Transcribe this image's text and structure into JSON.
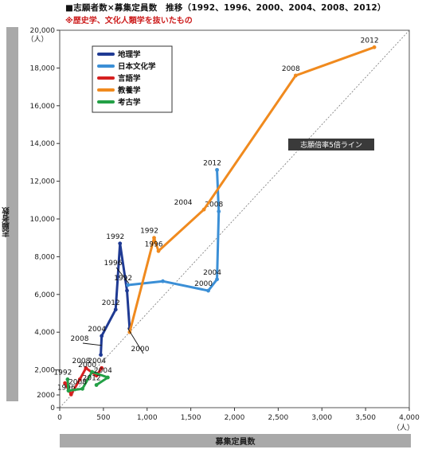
{
  "chart_data": {
    "type": "line",
    "title": "■志願者数×募集定員数　推移（1992、1996、2000、2004、2008、2012）",
    "subtitle": "※歴史学、文化人類学を抜いたもの",
    "xlabel": "募集定員数",
    "ylabel": "志願者数",
    "x_unit": "（人）",
    "y_unit": "（人）",
    "xlim": [
      0,
      4000
    ],
    "ylim": [
      0,
      20000
    ],
    "xticks": [
      "0",
      "500",
      "1,000",
      "1,500",
      "2,000",
      "2,500",
      "3,000",
      "3,500",
      "4,000"
    ],
    "yticks": [
      "0",
      "2000",
      "2,000",
      "4,000",
      "6,000",
      "8,000",
      "10,000",
      "12,000",
      "14,000",
      "16,000",
      "18,000",
      "20,000"
    ],
    "reference_line_label": "志願倍率5倍ライン",
    "legend": {
      "position": "top-left"
    },
    "series": [
      {
        "name": "地理学",
        "color": "#1f3a93",
        "points": [
          {
            "x": 470,
            "y": 2800,
            "label": ""
          },
          {
            "x": 480,
            "y": 3800,
            "label": "2004"
          },
          {
            "x": 640,
            "y": 5200,
            "label": "2012"
          },
          {
            "x": 690,
            "y": 8700,
            "label": "1992"
          },
          {
            "x": 770,
            "y": 6200,
            "label": ""
          },
          {
            "x": 800,
            "y": 4200,
            "label": ""
          }
        ]
      },
      {
        "name": "日本文化学",
        "color": "#3b8fd6",
        "points": [
          {
            "x": 780,
            "y": 6500,
            "label": "1992"
          },
          {
            "x": 1180,
            "y": 6700,
            "label": ""
          },
          {
            "x": 1700,
            "y": 6200,
            "label": "2000"
          },
          {
            "x": 1800,
            "y": 6800,
            "label": "2004"
          },
          {
            "x": 1820,
            "y": 10400,
            "label": "2008"
          },
          {
            "x": 1800,
            "y": 12600,
            "label": "2012"
          }
        ]
      },
      {
        "name": "言語学",
        "color": "#d62020",
        "points": [
          {
            "x": 60,
            "y": 1300,
            "label": ""
          },
          {
            "x": 130,
            "y": 700,
            "label": "1996"
          },
          {
            "x": 230,
            "y": 1500,
            "label": ""
          },
          {
            "x": 300,
            "y": 2100,
            "label": "2008"
          },
          {
            "x": 420,
            "y": 1700,
            "label": ""
          },
          {
            "x": 480,
            "y": 2100,
            "label": "2004"
          }
        ]
      },
      {
        "name": "教養学",
        "color": "#f08a1e",
        "points": [
          {
            "x": 800,
            "y": 4000,
            "label": ""
          },
          {
            "x": 1080,
            "y": 9000,
            "label": "1992"
          },
          {
            "x": 1130,
            "y": 8300,
            "label": "1996"
          },
          {
            "x": 1650,
            "y": 10500,
            "label": "2004"
          },
          {
            "x": 2700,
            "y": 17600,
            "label": "2008"
          },
          {
            "x": 3600,
            "y": 19100,
            "label": "2012"
          }
        ]
      },
      {
        "name": "考古学",
        "color": "#23a046",
        "points": [
          {
            "x": 90,
            "y": 1500,
            "label": "1992"
          },
          {
            "x": 100,
            "y": 900,
            "label": ""
          },
          {
            "x": 260,
            "y": 1000,
            "label": "2008"
          },
          {
            "x": 370,
            "y": 1900,
            "label": "2000"
          },
          {
            "x": 550,
            "y": 1600,
            "label": "2004"
          },
          {
            "x": 420,
            "y": 1200,
            "label": "2012"
          }
        ]
      }
    ],
    "callouts": [
      {
        "label": "1996",
        "x": 790,
        "y": 6600
      },
      {
        "label": "2000",
        "x": 780,
        "y": 4200
      },
      {
        "label": "2008",
        "x": 480,
        "y": 3300
      }
    ]
  }
}
